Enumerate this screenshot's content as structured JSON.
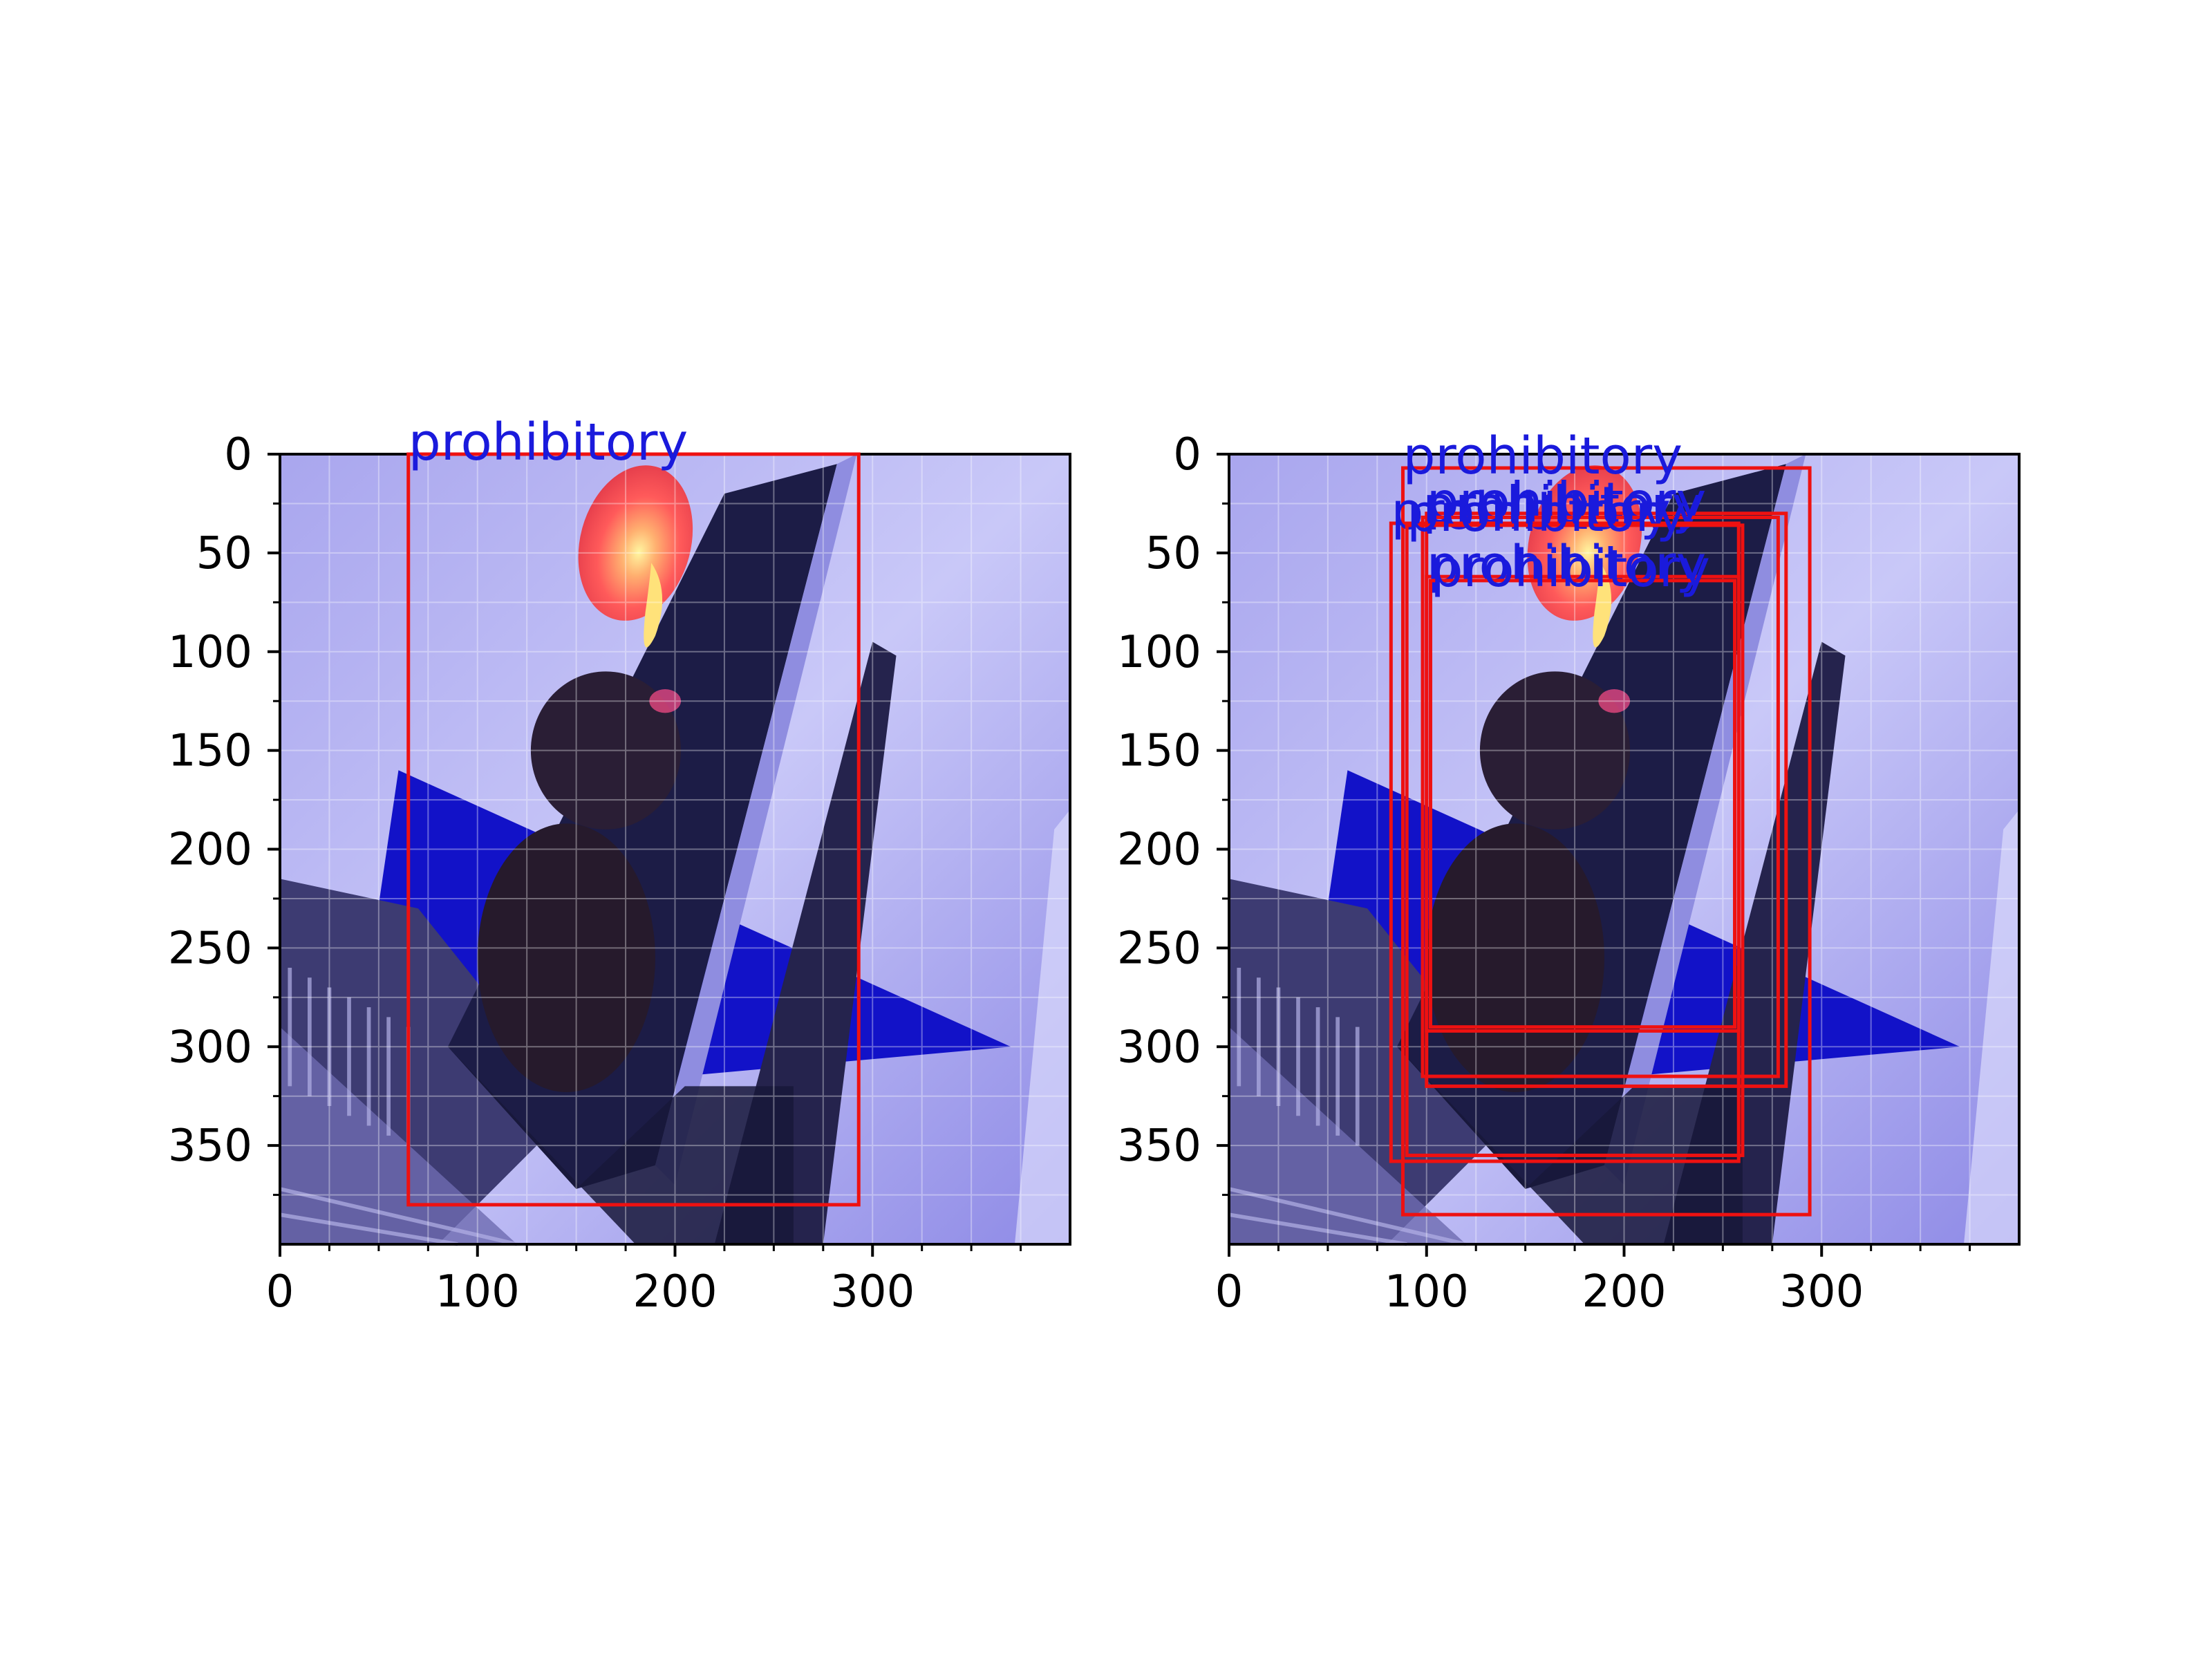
{
  "panels": [
    {
      "name": "left",
      "xlim": [
        0,
        400
      ],
      "ylim": [
        400,
        0
      ],
      "x_ticks": [
        "0",
        "100",
        "200",
        "300"
      ],
      "y_ticks": [
        "0",
        "50",
        "100",
        "150",
        "200",
        "250",
        "300",
        "350"
      ],
      "boxes": [
        {
          "label": "prohibitory",
          "x1": 65,
          "y1": 0,
          "x2": 293,
          "y2": 380
        }
      ]
    },
    {
      "name": "right",
      "xlim": [
        0,
        400
      ],
      "ylim": [
        400,
        0
      ],
      "x_ticks": [
        "0",
        "100",
        "200",
        "300"
      ],
      "y_ticks": [
        "0",
        "50",
        "100",
        "150",
        "200",
        "250",
        "300",
        "350"
      ],
      "boxes": [
        {
          "label": "prohibitory",
          "x1": 88,
          "y1": 7,
          "x2": 294,
          "y2": 385
        },
        {
          "label": "prohibitory",
          "x1": 100,
          "y1": 30,
          "x2": 282,
          "y2": 320
        },
        {
          "label": "prohibitory",
          "x1": 98,
          "y1": 32,
          "x2": 278,
          "y2": 315
        },
        {
          "label": "prohibitory",
          "x1": 82,
          "y1": 35,
          "x2": 258,
          "y2": 358
        },
        {
          "label": "prohibitory",
          "x1": 90,
          "y1": 36,
          "x2": 260,
          "y2": 355
        },
        {
          "label": "prohibitory",
          "x1": 100,
          "y1": 62,
          "x2": 258,
          "y2": 292
        },
        {
          "label": "prohibitory",
          "x1": 102,
          "y1": 64,
          "x2": 256,
          "y2": 290
        }
      ]
    }
  ],
  "colors": {
    "box": "#ee1111",
    "label": "#1a1adc",
    "sky": "#b9b6f2",
    "pole": "#1c1c46",
    "lamp_red": "#ff5a5a",
    "lamp_yellow": "#ffe27a",
    "sign_blue": "#1212c8"
  }
}
